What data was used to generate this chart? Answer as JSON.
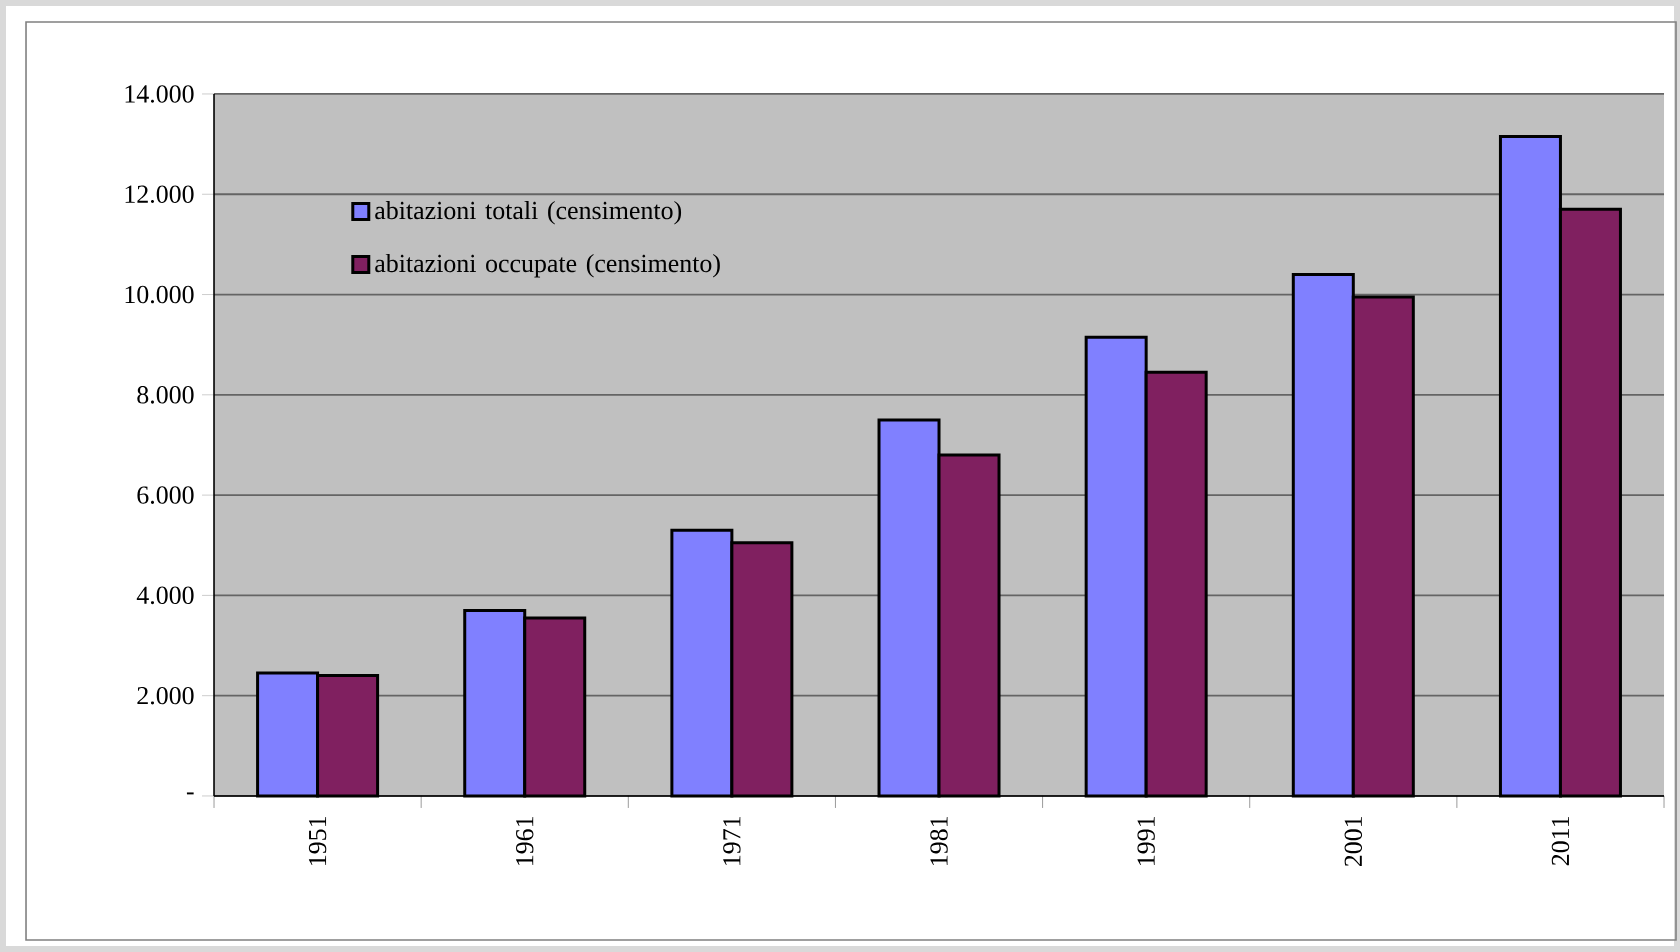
{
  "chart_data": {
    "type": "bar",
    "categories": [
      "1951",
      "1961",
      "1971",
      "1981",
      "1991",
      "2001",
      "2011"
    ],
    "series": [
      {
        "name": "abitazioni totali (censimento)",
        "color": "#8080ff",
        "values": [
          2450,
          3700,
          5300,
          7500,
          9150,
          10400,
          13150
        ]
      },
      {
        "name": "abitazioni occupate (censimento)",
        "color": "#802060",
        "values": [
          2400,
          3550,
          5050,
          6800,
          8450,
          9950,
          11700
        ]
      }
    ],
    "ylim": [
      0,
      14000
    ],
    "yticks": [
      {
        "value": 0,
        "label": "-"
      },
      {
        "value": 2000,
        "label": "2.000"
      },
      {
        "value": 4000,
        "label": "4.000"
      },
      {
        "value": 6000,
        "label": "6.000"
      },
      {
        "value": 8000,
        "label": "8.000"
      },
      {
        "value": 10000,
        "label": "10.000"
      },
      {
        "value": 12000,
        "label": "12.000"
      },
      {
        "value": 14000,
        "label": "14.000"
      }
    ],
    "grid": "y",
    "legend": "top left"
  }
}
